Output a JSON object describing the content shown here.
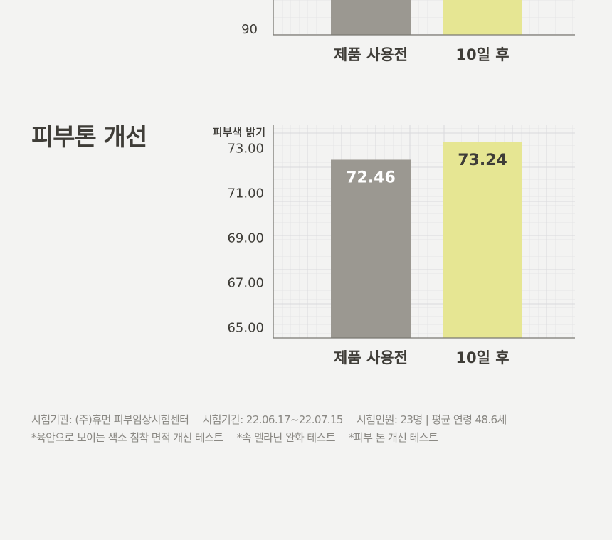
{
  "chart_data": [
    {
      "type": "bar",
      "title": "",
      "ylabel": "",
      "y_ticks": [
        "90"
      ],
      "categories": [
        "제품 사용전",
        "10일 후"
      ],
      "colors": [
        "#9b9891",
        "#e6e693"
      ],
      "grid": true
    },
    {
      "type": "bar",
      "title": "피부톤 개선",
      "ylabel": "피부색 밝기",
      "y_ticks": [
        "65.00",
        "67.00",
        "69.00",
        "71.00",
        "73.00"
      ],
      "ylim": [
        64.5,
        74.0
      ],
      "categories": [
        "제품 사용전",
        "10일 후"
      ],
      "values": [
        72.46,
        73.24
      ],
      "value_labels": [
        "72.46",
        "73.24"
      ],
      "colors": [
        "#9b9891",
        "#e6e693"
      ],
      "grid": true
    }
  ],
  "footer": {
    "info": [
      "시험기관: (주)휴먼 피부임상시험센터",
      "시험기간: 22.06.17~22.07.15",
      "시험인원: 23명  |  평균 연령 48.6세"
    ],
    "tests": [
      "*육안으로 보이는 색소 침착 면적 개선 테스트",
      "*속 멜라닌 완화 테스트",
      "*피부 톤 개선 테스트"
    ]
  }
}
